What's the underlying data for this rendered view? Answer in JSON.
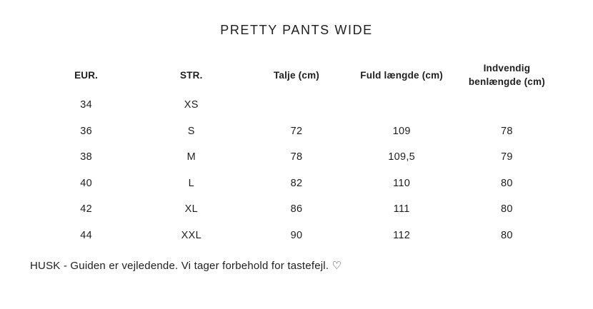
{
  "page": {
    "title": "PRETTY PANTS WIDE",
    "footer_note": "HUSK - Guiden er vejledende. Vi tager forbehold for tastefejl. ♡"
  },
  "size_table": {
    "headers": [
      "EUR.",
      "STR.",
      "Talje (cm)",
      "Fuld længde (cm)",
      "Indvendig\nbenlængde (cm)"
    ],
    "rows": [
      [
        "34",
        "XS",
        "",
        "",
        ""
      ],
      [
        "36",
        "S",
        "72",
        "109",
        "78"
      ],
      [
        "38",
        "M",
        "78",
        "109,5",
        "79"
      ],
      [
        "40",
        "L",
        "82",
        "110",
        "80"
      ],
      [
        "42",
        "XL",
        "86",
        "111",
        "80"
      ],
      [
        "44",
        "XXL",
        "90",
        "112",
        "80"
      ]
    ]
  },
  "colors": {
    "text": "#1e1e1e",
    "background": "#ffffff"
  }
}
